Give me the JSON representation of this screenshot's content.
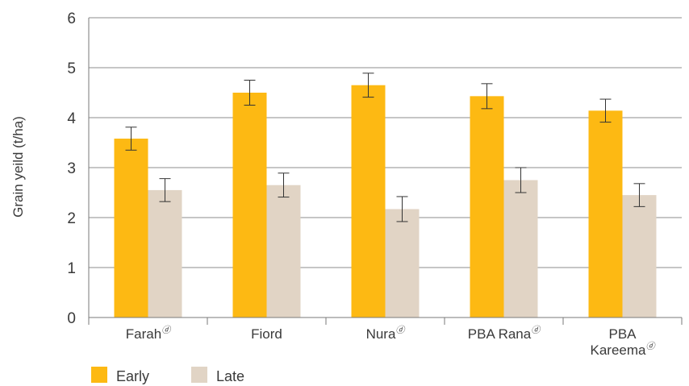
{
  "chart_data": {
    "type": "bar",
    "ylabel": "Grain yeild (t/ha)",
    "ylim": [
      0,
      6
    ],
    "yticks": [
      0,
      1,
      2,
      3,
      4,
      5,
      6
    ],
    "grid": true,
    "legend_position": "bottom-left",
    "categories": [
      {
        "lines": [
          "Farah"
        ],
        "sup": "ⓓ"
      },
      {
        "lines": [
          "Fiord"
        ],
        "sup": ""
      },
      {
        "lines": [
          "Nura"
        ],
        "sup": "ⓓ"
      },
      {
        "lines": [
          "PBA Rana"
        ],
        "sup": "ⓓ"
      },
      {
        "lines": [
          "PBA",
          "Kareema"
        ],
        "sup": "ⓓ"
      }
    ],
    "series": [
      {
        "name": "Early",
        "color": "#FDB913",
        "values": [
          3.58,
          4.5,
          4.65,
          4.43,
          4.14
        ],
        "error": [
          0.23,
          0.25,
          0.24,
          0.25,
          0.23
        ]
      },
      {
        "name": "Late",
        "color": "#E1D4C5",
        "values": [
          2.55,
          2.65,
          2.17,
          2.75,
          2.45
        ],
        "error": [
          0.23,
          0.24,
          0.25,
          0.25,
          0.23
        ]
      }
    ]
  }
}
